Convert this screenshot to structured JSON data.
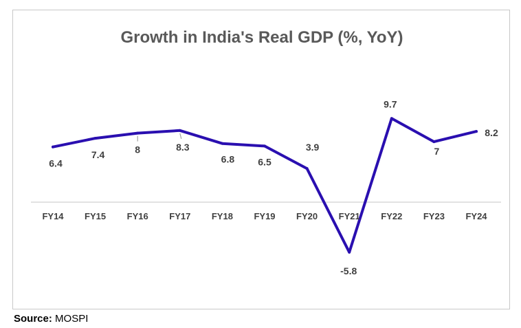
{
  "chart_data": {
    "type": "line",
    "title": "Growth in India's Real GDP (%, YoY)",
    "xlabel": "",
    "ylabel": "",
    "categories": [
      "FY14",
      "FY15",
      "FY16",
      "FY17",
      "FY18",
      "FY19",
      "FY20",
      "FY21",
      "FY22",
      "FY23",
      "FY24"
    ],
    "series": [
      {
        "values": [
          6.4,
          7.4,
          8,
          8.3,
          6.8,
          6.5,
          3.9,
          -5.8,
          9.7,
          7,
          8.2
        ],
        "data_labels": [
          "6.4",
          "7.4",
          "8",
          "8.3",
          "6.8",
          "6.5",
          "3.9",
          "-5.8",
          "9.7",
          "7",
          "8.2"
        ]
      }
    ],
    "ylim": [
      -7,
      12
    ],
    "grid": false,
    "legend": "none",
    "line_color": "#2a0fb0",
    "axis_color": "#d0d0d0",
    "label_color": "#404040",
    "title_color": "#595959"
  },
  "source": {
    "label": "Source:",
    "value": "MOSPI"
  }
}
